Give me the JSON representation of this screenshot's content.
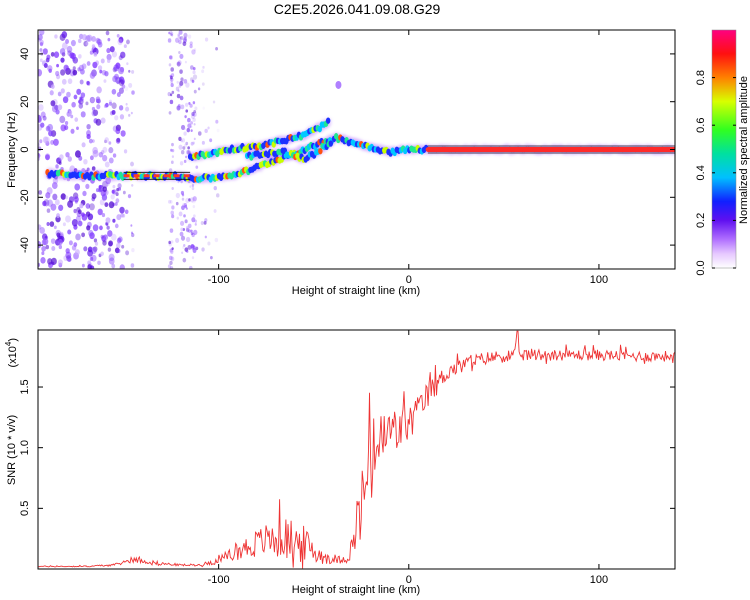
{
  "title": "C2E5.2026.041.09.08.G29",
  "chart_data": [
    {
      "type": "heatmap",
      "name": "spectrogram",
      "xlabel": "Height of straight line (km)",
      "ylabel": "Frequency (Hz)",
      "xlim": [
        -195,
        140
      ],
      "ylim": [
        -50,
        50
      ],
      "xticks": [
        -100,
        0,
        100
      ],
      "xtick_labels": [
        "-100",
        "0",
        "100"
      ],
      "yticks": [
        -40,
        -20,
        0,
        20,
        40
      ],
      "ytick_labels": [
        "-40",
        "-20",
        "0",
        "20",
        "40"
      ],
      "colorbar": {
        "label": "Normalized spectral amplitude",
        "range": [
          0,
          1
        ],
        "ticks": [
          0.0,
          0.2,
          0.4,
          0.6,
          0.8
        ],
        "tick_labels": [
          "0.0",
          "0.2",
          "0.4",
          "0.6",
          "0.8"
        ]
      },
      "tracks": [
        {
          "name": "main-doppler-track",
          "x": [
            -190,
            -170,
            -155,
            -145,
            -135,
            -125,
            -115,
            -105,
            -95,
            -85,
            -75,
            -65,
            -55,
            -45,
            -38,
            -30,
            -20,
            -10,
            0,
            10,
            20,
            60,
            100,
            140
          ],
          "y": [
            -10,
            -11,
            -11,
            -11,
            -11,
            -11,
            -12,
            -12,
            -11,
            -9,
            -6,
            -3,
            0,
            3,
            5,
            3,
            1,
            -1,
            0,
            0,
            0,
            0,
            0,
            0
          ]
        },
        {
          "name": "upper-branch",
          "x": [
            -115,
            -105,
            -95,
            -85,
            -75,
            -65,
            -55,
            -45,
            -42
          ],
          "y": [
            -3,
            -2,
            0,
            1,
            2,
            4,
            6,
            10,
            12
          ]
        },
        {
          "name": "lower-branch",
          "x": [
            -85,
            -75,
            -65,
            -60,
            -55,
            -50,
            -45,
            -40
          ],
          "y": [
            -3,
            -2,
            -1,
            -3,
            -4,
            -2,
            1,
            3
          ]
        }
      ],
      "isolated_peaks": [
        {
          "x": -37,
          "y": 27
        }
      ]
    },
    {
      "type": "line",
      "name": "snr",
      "xlabel": "Height of straight line (km)",
      "ylabel": "SNR (10 * v/v)",
      "ylabel_multiplier": "(x10",
      "ylabel_multiplier_exp": "4",
      "multiplier": 10000,
      "xlim": [
        -195,
        140
      ],
      "ylim": [
        0,
        1.97
      ],
      "xticks": [
        -100,
        0,
        100
      ],
      "xtick_labels": [
        "-100",
        "0",
        "100"
      ],
      "yticks": [
        0.5,
        1.0,
        1.5
      ],
      "ytick_labels": [
        "0.5",
        "1.0",
        "1.5"
      ],
      "color": "#ee3333",
      "envelope": {
        "x": [
          -195,
          -170,
          -155,
          -145,
          -130,
          -120,
          -110,
          -100,
          -95,
          -85,
          -75,
          -65,
          -55,
          -48,
          -40,
          -32,
          -28,
          -24,
          -20,
          -15,
          -10,
          -5,
          0,
          5,
          10,
          15,
          20,
          30,
          40,
          50,
          60,
          80,
          100,
          120,
          140
        ],
        "base": [
          0.02,
          0.02,
          0.03,
          0.07,
          0.04,
          0.03,
          0.03,
          0.06,
          0.1,
          0.15,
          0.2,
          0.2,
          0.15,
          0.1,
          0.06,
          0.08,
          0.2,
          0.5,
          0.8,
          0.95,
          1.05,
          1.1,
          1.15,
          1.25,
          1.4,
          1.5,
          1.6,
          1.68,
          1.72,
          1.74,
          1.75,
          1.75,
          1.75,
          1.74,
          1.74
        ],
        "noise": [
          0.01,
          0.01,
          0.02,
          0.05,
          0.03,
          0.02,
          0.02,
          0.06,
          0.1,
          0.22,
          0.3,
          0.4,
          0.35,
          0.2,
          0.05,
          0.1,
          0.4,
          0.7,
          0.7,
          0.6,
          0.5,
          0.4,
          0.35,
          0.3,
          0.25,
          0.2,
          0.15,
          0.12,
          0.12,
          0.12,
          0.12,
          0.1,
          0.1,
          0.1,
          0.1
        ]
      },
      "peak": {
        "x": 57,
        "y": 1.96
      }
    }
  ]
}
